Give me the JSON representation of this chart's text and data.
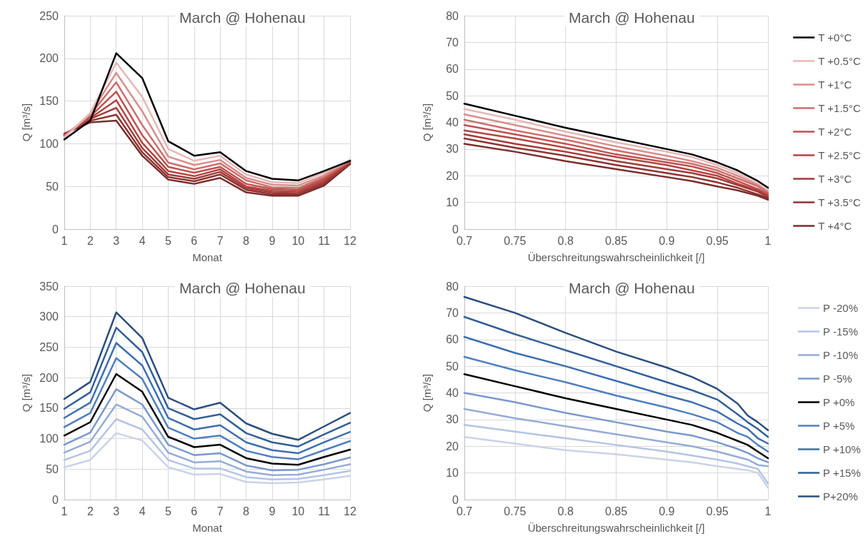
{
  "chart_data": [
    {
      "type": "line",
      "title": "March @ Hohenau",
      "xlabel": "Monat",
      "ylabel": "Q [m³/s]",
      "x": [
        1,
        2,
        3,
        4,
        5,
        6,
        7,
        8,
        9,
        10,
        11,
        12
      ],
      "xlim": [
        1,
        12
      ],
      "xticks": [
        1,
        2,
        3,
        4,
        5,
        6,
        7,
        8,
        9,
        10,
        11,
        12
      ],
      "ylim": [
        0,
        250
      ],
      "yticks": [
        0,
        50,
        100,
        150,
        200,
        250
      ],
      "grid": true,
      "legend": false,
      "marker": "none",
      "line_style": "solid",
      "series": [
        {
          "color": "#7b2c2b",
          "values": [
            112,
            125,
            127,
            86,
            58,
            53,
            60,
            43,
            39,
            39,
            51,
            76
          ]
        },
        {
          "color": "#8e3331",
          "values": [
            111,
            127,
            134,
            90,
            61,
            56,
            64,
            46,
            41,
            41,
            53,
            77
          ]
        },
        {
          "color": "#a13b39",
          "values": [
            111,
            129,
            142,
            95,
            64,
            59,
            67,
            48,
            43,
            42,
            55,
            78
          ]
        },
        {
          "color": "#b44442",
          "values": [
            110,
            130,
            151,
            101,
            68,
            62,
            70,
            50,
            45,
            44,
            57,
            79
          ]
        },
        {
          "color": "#c0504d",
          "values": [
            110,
            132,
            161,
            110,
            73,
            66,
            73,
            53,
            47,
            46,
            59,
            80
          ]
        },
        {
          "color": "#cc6e6c",
          "values": [
            109,
            134,
            172,
            122,
            78,
            70,
            77,
            57,
            49,
            48,
            61,
            80
          ]
        },
        {
          "color": "#d88e8c",
          "values": [
            108,
            135,
            183,
            138,
            85,
            75,
            81,
            60,
            52,
            51,
            63,
            81
          ]
        },
        {
          "color": "#e6b8b7",
          "values": [
            107,
            136,
            195,
            155,
            94,
            80,
            86,
            64,
            55,
            54,
            66,
            81
          ]
        },
        {
          "color": "#000000",
          "values": [
            105,
            127,
            206,
            177,
            103,
            86,
            90,
            68,
            59,
            57,
            68,
            80
          ]
        }
      ]
    },
    {
      "type": "line",
      "title": "March @ Hohenau",
      "xlabel": "Überschreitungswahrscheinlichkeit [/]",
      "ylabel": "Q [m³/s]",
      "x": [
        0.7,
        0.75,
        0.8,
        0.85,
        0.9,
        0.925,
        0.95,
        0.97,
        0.99,
        1
      ],
      "xlim": [
        0.7,
        1
      ],
      "xticks": [
        0.7,
        0.75,
        0.8,
        0.85,
        0.9,
        0.95,
        1
      ],
      "ylim": [
        0,
        80
      ],
      "yticks": [
        0,
        10,
        20,
        30,
        40,
        50,
        60,
        70,
        80
      ],
      "grid": true,
      "legend": "right",
      "marker": "none",
      "line_style": "solid",
      "series": [
        {
          "name": "T +0°C",
          "color": "#000000",
          "values": [
            47,
            42.5,
            38,
            34,
            30,
            28,
            25,
            22,
            18,
            15.5
          ]
        },
        {
          "name": "T +0.5°C",
          "color": "#e6b8b7",
          "values": [
            45,
            41,
            36.5,
            32.5,
            29,
            27,
            24,
            21,
            17,
            14.5
          ]
        },
        {
          "name": "T +1°C",
          "color": "#d88e8c",
          "values": [
            43,
            39,
            35,
            31,
            27.5,
            25.5,
            23,
            20,
            16.5,
            14
          ]
        },
        {
          "name": "T +1.5°C",
          "color": "#cc6e6c",
          "values": [
            41,
            37,
            33.5,
            29.5,
            26,
            24.5,
            22,
            19,
            16,
            13.5
          ]
        },
        {
          "name": "T +2°C",
          "color": "#c0504d",
          "values": [
            39,
            35.5,
            32,
            28,
            25,
            23.5,
            21,
            18,
            15,
            13
          ]
        },
        {
          "name": "T +2.5°C",
          "color": "#b44442",
          "values": [
            37,
            34,
            30.5,
            27,
            24,
            22,
            20,
            17,
            14.5,
            12.5
          ]
        },
        {
          "name": "T +3°C",
          "color": "#a13b39",
          "values": [
            35.5,
            32,
            29,
            25.5,
            22.5,
            21,
            19,
            16.5,
            14,
            12
          ]
        },
        {
          "name": "T +3.5°C",
          "color": "#8e3331",
          "values": [
            34,
            30.5,
            27.5,
            24,
            21,
            19.5,
            17.5,
            15.5,
            13,
            11.5
          ]
        },
        {
          "name": "T +4°C",
          "color": "#7b2c2b",
          "values": [
            32,
            29,
            25.5,
            22.5,
            19.5,
            18,
            16,
            14.5,
            12.5,
            11
          ]
        }
      ]
    },
    {
      "type": "line",
      "title": "March @ Hohenau",
      "xlabel": "Monat",
      "ylabel": "Q [m³/s]",
      "x": [
        1,
        2,
        3,
        4,
        5,
        6,
        7,
        8,
        9,
        10,
        11,
        12
      ],
      "xlim": [
        1,
        12
      ],
      "xticks": [
        1,
        2,
        3,
        4,
        5,
        6,
        7,
        8,
        9,
        10,
        11,
        12
      ],
      "ylim": [
        0,
        350
      ],
      "yticks": [
        0,
        50,
        100,
        150,
        200,
        250,
        300,
        350
      ],
      "grid": true,
      "legend": false,
      "marker": "none",
      "line_style": "solid",
      "series": [
        {
          "color": "#c9d3e8",
          "values": [
            53,
            65,
            109,
            97,
            53,
            41,
            42,
            29,
            27,
            28,
            33,
            39
          ]
        },
        {
          "color": "#b4c4e3",
          "values": [
            65,
            80,
            132,
            115,
            65,
            51,
            51,
            37,
            33,
            34,
            40,
            47
          ]
        },
        {
          "color": "#95acd6",
          "values": [
            77,
            95,
            156,
            136,
            77,
            61,
            63,
            46,
            40,
            41,
            49,
            58
          ]
        },
        {
          "color": "#7a98cc",
          "values": [
            90,
            110,
            181,
            156,
            90,
            73,
            76,
            56,
            48,
            49,
            58,
            69
          ]
        },
        {
          "color": "#000000",
          "values": [
            105,
            127,
            206,
            177,
            103,
            86,
            90,
            68,
            59,
            57,
            70,
            82
          ]
        },
        {
          "color": "#4f7fc0",
          "values": [
            119,
            142,
            232,
            198,
            118,
            100,
            105,
            80,
            70,
            66,
            81,
            96
          ]
        },
        {
          "color": "#3c6eb0",
          "values": [
            134,
            159,
            257,
            220,
            134,
            115,
            122,
            94,
            81,
            76,
            94,
            111
          ]
        },
        {
          "color": "#325f9a",
          "values": [
            149,
            176,
            282,
            242,
            150,
            132,
            140,
            109,
            94,
            87,
            107,
            126
          ]
        },
        {
          "color": "#2b4e7f",
          "values": [
            165,
            193,
            307,
            265,
            167,
            148,
            159,
            125,
            108,
            98,
            120,
            142
          ]
        }
      ]
    },
    {
      "type": "line",
      "title": "March @ Hohenau",
      "xlabel": "Überschreitungswahrscheinlichkeit [/]",
      "ylabel": "Q [m³/s]",
      "x": [
        0.7,
        0.75,
        0.8,
        0.85,
        0.9,
        0.925,
        0.95,
        0.97,
        0.98,
        0.99,
        1
      ],
      "xlim": [
        0.7,
        1
      ],
      "xticks": [
        0.7,
        0.75,
        0.8,
        0.85,
        0.9,
        0.95,
        1
      ],
      "ylim": [
        0,
        80
      ],
      "yticks": [
        0,
        10,
        20,
        30,
        40,
        50,
        60,
        70,
        80
      ],
      "grid": true,
      "legend": "right",
      "marker": "none",
      "line_style": "solid",
      "series": [
        {
          "name": "P -20%",
          "color": "#c9d3e8",
          "values": [
            23.5,
            21,
            18.5,
            17,
            15,
            14,
            12.5,
            11.5,
            11,
            10,
            4.5
          ]
        },
        {
          "name": "P -15%",
          "color": "#b4c4e3",
          "values": [
            28,
            25.5,
            23,
            20.5,
            18,
            16.5,
            15,
            13.5,
            12.5,
            11.5,
            6
          ]
        },
        {
          "name": "P -10%",
          "color": "#95acd6",
          "values": [
            34,
            30.5,
            27.5,
            24.5,
            21.5,
            20,
            18,
            16,
            15,
            13,
            12.5
          ]
        },
        {
          "name": "P -5%",
          "color": "#7a98cc",
          "values": [
            40,
            36.5,
            32.5,
            29,
            25.5,
            24,
            21.5,
            19,
            17.5,
            15.5,
            14
          ]
        },
        {
          "name": "P +0%",
          "color": "#000000",
          "values": [
            47,
            42.5,
            38,
            34,
            30,
            28,
            25,
            22,
            20.5,
            18,
            15.5
          ]
        },
        {
          "name": "P +5%",
          "color": "#4f7fc0",
          "values": [
            53.5,
            48.5,
            44,
            39,
            34.5,
            32,
            29,
            25,
            23.5,
            20.5,
            18
          ]
        },
        {
          "name": "P +10%",
          "color": "#3c6eb0",
          "values": [
            61,
            55,
            50,
            44.5,
            39,
            36.5,
            33,
            28.5,
            26.5,
            23,
            21
          ]
        },
        {
          "name": "P +15%",
          "color": "#325f9a",
          "values": [
            68.5,
            62,
            56,
            50,
            44,
            41,
            37.5,
            32,
            29,
            26.5,
            23.5
          ]
        },
        {
          "name": "P+20%",
          "color": "#2b4e7f",
          "values": [
            76,
            70,
            62.5,
            55.5,
            49.5,
            46,
            41.5,
            36,
            31.5,
            29,
            26
          ]
        }
      ]
    }
  ]
}
